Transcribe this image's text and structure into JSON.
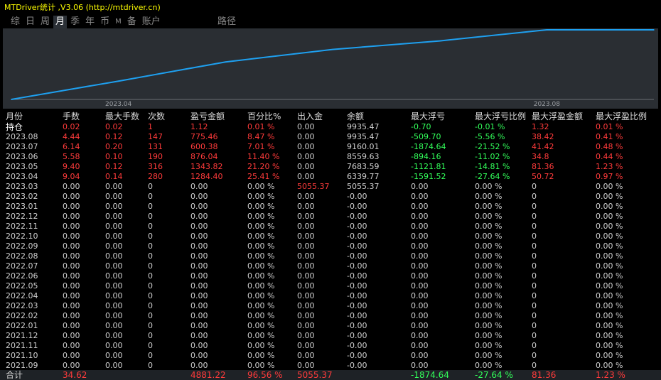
{
  "app": {
    "title": "MTDriver统计 ,V3.06 (http://mtdriver.cn)",
    "tabs": [
      {
        "label": "综",
        "active": false
      },
      {
        "label": "日",
        "active": false
      },
      {
        "label": "周",
        "active": false
      },
      {
        "label": "月",
        "active": true
      },
      {
        "label": "季",
        "active": false
      },
      {
        "label": "年",
        "active": false
      },
      {
        "label": "币",
        "active": false
      },
      {
        "label": "M",
        "active": false
      },
      {
        "label": "备",
        "active": false
      },
      {
        "label": "账户",
        "active": false
      }
    ],
    "path_label": "路径"
  },
  "colors": {
    "positive": "#ff3b3b",
    "negative": "#32ff5a",
    "line": "#1ea0f0",
    "chart_bg": "#2a2e33"
  },
  "chart_data": {
    "type": "line",
    "x_ticks": [
      "2023.04",
      "2023.08"
    ],
    "series": [
      {
        "x": [
          "2023.03",
          "2023.04",
          "2023.05",
          "2023.06",
          "2023.07",
          "2023.08",
          "持仓"
        ],
        "values": [
          5055.37,
          6339.77,
          7683.59,
          8559.63,
          9160.01,
          9935.47,
          9935.47
        ]
      }
    ],
    "grid": false
  },
  "table": {
    "headers": [
      "月份",
      "手数",
      "最大手数",
      "次数",
      "盈亏金额",
      "百分比%",
      "出入金",
      "余额",
      "最大浮亏",
      "最大浮亏比例",
      "最大浮盈金额",
      "最大浮盈比例"
    ],
    "rows": [
      {
        "cells": [
          "持仓",
          "0.02",
          "0.02",
          "1",
          "1.12",
          "0.01 %",
          "0.00",
          "9935.47",
          "-0.70",
          "-0.01 %",
          "1.32",
          "0.01 %"
        ],
        "tone": [
          "hold",
          "pos",
          "pos",
          "pos",
          "pos",
          "pos",
          "d",
          "d",
          "neg",
          "neg",
          "pos",
          "pos"
        ]
      },
      {
        "cells": [
          "2023.08",
          "4.44",
          "0.12",
          "147",
          "775.46",
          "8.47 %",
          "0.00",
          "9935.47",
          "-509.70",
          "-5.56 %",
          "38.42",
          "0.41 %"
        ],
        "tone": [
          "d",
          "pos",
          "pos",
          "pos",
          "pos",
          "pos",
          "d",
          "d",
          "neg",
          "neg",
          "pos",
          "pos"
        ]
      },
      {
        "cells": [
          "2023.07",
          "6.14",
          "0.20",
          "131",
          "600.38",
          "7.01 %",
          "0.00",
          "9160.01",
          "-1874.64",
          "-21.52 %",
          "41.42",
          "0.48 %"
        ],
        "tone": [
          "d",
          "pos",
          "pos",
          "pos",
          "pos",
          "pos",
          "d",
          "d",
          "neg",
          "neg",
          "pos",
          "pos"
        ]
      },
      {
        "cells": [
          "2023.06",
          "5.58",
          "0.10",
          "190",
          "876.04",
          "11.40 %",
          "0.00",
          "8559.63",
          "-894.16",
          "-11.02 %",
          "34.8",
          "0.44 %"
        ],
        "tone": [
          "d",
          "pos",
          "pos",
          "pos",
          "pos",
          "pos",
          "d",
          "d",
          "neg",
          "neg",
          "pos",
          "pos"
        ]
      },
      {
        "cells": [
          "2023.05",
          "9.40",
          "0.12",
          "316",
          "1343.82",
          "21.20 %",
          "0.00",
          "7683.59",
          "-1121.81",
          "-14.81 %",
          "81.36",
          "1.23 %"
        ],
        "tone": [
          "d",
          "pos",
          "pos",
          "pos",
          "pos",
          "pos",
          "d",
          "d",
          "neg",
          "neg",
          "pos",
          "pos"
        ]
      },
      {
        "cells": [
          "2023.04",
          "9.04",
          "0.14",
          "280",
          "1284.40",
          "25.41 %",
          "0.00",
          "6339.77",
          "-1591.52",
          "-27.64 %",
          "50.72",
          "0.97 %"
        ],
        "tone": [
          "d",
          "pos",
          "pos",
          "pos",
          "pos",
          "pos",
          "d",
          "d",
          "neg",
          "neg",
          "pos",
          "pos"
        ]
      },
      {
        "cells": [
          "2023.03",
          "0.00",
          "0.00",
          "0",
          "0.00",
          "0.00 %",
          "5055.37",
          "5055.37",
          "0.00",
          "0.00 %",
          "0",
          "0.00 %"
        ],
        "tone": [
          "d",
          "d",
          "d",
          "d",
          "d",
          "d",
          "pos",
          "d",
          "d",
          "d",
          "d",
          "d"
        ]
      },
      {
        "cells": [
          "2023.02",
          "0.00",
          "0.00",
          "0",
          "0.00",
          "0.00 %",
          "0.00",
          "-0.00",
          "0.00",
          "0.00 %",
          "0",
          "0.00 %"
        ]
      },
      {
        "cells": [
          "2023.01",
          "0.00",
          "0.00",
          "0",
          "0.00",
          "0.00 %",
          "0.00",
          "-0.00",
          "0.00",
          "0.00 %",
          "0",
          "0.00 %"
        ]
      },
      {
        "cells": [
          "2022.12",
          "0.00",
          "0.00",
          "0",
          "0.00",
          "0.00 %",
          "0.00",
          "-0.00",
          "0.00",
          "0.00 %",
          "0",
          "0.00 %"
        ]
      },
      {
        "cells": [
          "2022.11",
          "0.00",
          "0.00",
          "0",
          "0.00",
          "0.00 %",
          "0.00",
          "-0.00",
          "0.00",
          "0.00 %",
          "0",
          "0.00 %"
        ]
      },
      {
        "cells": [
          "2022.10",
          "0.00",
          "0.00",
          "0",
          "0.00",
          "0.00 %",
          "0.00",
          "-0.00",
          "0.00",
          "0.00 %",
          "0",
          "0.00 %"
        ]
      },
      {
        "cells": [
          "2022.09",
          "0.00",
          "0.00",
          "0",
          "0.00",
          "0.00 %",
          "0.00",
          "-0.00",
          "0.00",
          "0.00 %",
          "0",
          "0.00 %"
        ]
      },
      {
        "cells": [
          "2022.08",
          "0.00",
          "0.00",
          "0",
          "0.00",
          "0.00 %",
          "0.00",
          "-0.00",
          "0.00",
          "0.00 %",
          "0",
          "0.00 %"
        ]
      },
      {
        "cells": [
          "2022.07",
          "0.00",
          "0.00",
          "0",
          "0.00",
          "0.00 %",
          "0.00",
          "-0.00",
          "0.00",
          "0.00 %",
          "0",
          "0.00 %"
        ]
      },
      {
        "cells": [
          "2022.06",
          "0.00",
          "0.00",
          "0",
          "0.00",
          "0.00 %",
          "0.00",
          "-0.00",
          "0.00",
          "0.00 %",
          "0",
          "0.00 %"
        ]
      },
      {
        "cells": [
          "2022.05",
          "0.00",
          "0.00",
          "0",
          "0.00",
          "0.00 %",
          "0.00",
          "-0.00",
          "0.00",
          "0.00 %",
          "0",
          "0.00 %"
        ]
      },
      {
        "cells": [
          "2022.04",
          "0.00",
          "0.00",
          "0",
          "0.00",
          "0.00 %",
          "0.00",
          "-0.00",
          "0.00",
          "0.00 %",
          "0",
          "0.00 %"
        ]
      },
      {
        "cells": [
          "2022.03",
          "0.00",
          "0.00",
          "0",
          "0.00",
          "0.00 %",
          "0.00",
          "-0.00",
          "0.00",
          "0.00 %",
          "0",
          "0.00 %"
        ]
      },
      {
        "cells": [
          "2022.02",
          "0.00",
          "0.00",
          "0",
          "0.00",
          "0.00 %",
          "0.00",
          "-0.00",
          "0.00",
          "0.00 %",
          "0",
          "0.00 %"
        ]
      },
      {
        "cells": [
          "2022.01",
          "0.00",
          "0.00",
          "0",
          "0.00",
          "0.00 %",
          "0.00",
          "-0.00",
          "0.00",
          "0.00 %",
          "0",
          "0.00 %"
        ]
      },
      {
        "cells": [
          "2021.12",
          "0.00",
          "0.00",
          "0",
          "0.00",
          "0.00 %",
          "0.00",
          "-0.00",
          "0.00",
          "0.00 %",
          "0",
          "0.00 %"
        ]
      },
      {
        "cells": [
          "2021.11",
          "0.00",
          "0.00",
          "0",
          "0.00",
          "0.00 %",
          "0.00",
          "-0.00",
          "0.00",
          "0.00 %",
          "0",
          "0.00 %"
        ]
      },
      {
        "cells": [
          "2021.10",
          "0.00",
          "0.00",
          "0",
          "0.00",
          "0.00 %",
          "0.00",
          "-0.00",
          "0.00",
          "0.00 %",
          "0",
          "0.00 %"
        ]
      },
      {
        "cells": [
          "2021.09",
          "0.00",
          "0.00",
          "0",
          "0.00",
          "0.00 %",
          "0.00",
          "-0.00",
          "0.00",
          "0.00 %",
          "0",
          "0.00 %"
        ]
      }
    ],
    "total": {
      "cells": [
        "合计",
        "34.62",
        "",
        "",
        "4881.22",
        "96.56 %",
        "5055.37",
        "",
        "-1874.64",
        "-27.64 %",
        "81.36",
        "1.23 %"
      ],
      "tone": [
        "d",
        "pos",
        "d",
        "d",
        "pos",
        "pos",
        "pos",
        "d",
        "neg",
        "neg",
        "pos",
        "pos"
      ]
    }
  }
}
